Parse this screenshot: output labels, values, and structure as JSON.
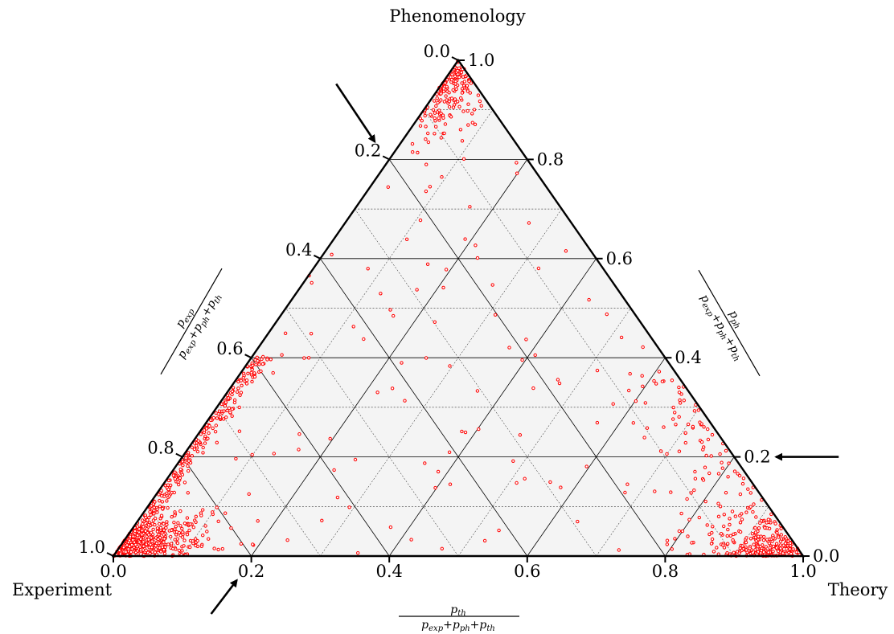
{
  "chart_data": {
    "type": "scatter",
    "subtype": "ternary",
    "corners": {
      "top": "Phenomenology",
      "left": "Experiment",
      "right": "Theory"
    },
    "axes": {
      "bottom": {
        "label_num": "p",
        "label_num_sub": "th",
        "label_den": "p",
        "label_den_parts": [
          "exp",
          "+p",
          "ph",
          "+p",
          "th"
        ],
        "ticks": [
          "0.0",
          "0.2",
          "0.4",
          "0.6",
          "0.8",
          "1.0"
        ]
      },
      "left": {
        "label_num": "p",
        "label_num_sub": "exp",
        "label_den": "p",
        "label_den_parts": [
          "exp",
          "+p",
          "ph",
          "+p",
          "th"
        ],
        "ticks": [
          "1.0",
          "0.8",
          "0.6",
          "0.4",
          "0.2",
          "0.0"
        ]
      },
      "right": {
        "label_num": "p",
        "label_num_sub": "ph",
        "label_den": "p",
        "label_den_parts": [
          "exp",
          "+p",
          "ph",
          "+p",
          "th"
        ],
        "ticks": [
          "0.0",
          "0.2",
          "0.4",
          "0.6",
          "0.8",
          "1.0"
        ]
      }
    },
    "gridlines": 10,
    "grid": true,
    "marker_color": "#ff0000",
    "background_color": "#f4f4f4",
    "clusters": [
      {
        "region": "experiment-corner",
        "center": [
          0.04,
          0.02
        ],
        "spread": [
          0.05,
          0.03
        ],
        "count": 420
      },
      {
        "region": "experiment-phenomenology-edge",
        "center": [
          0.03,
          0.22
        ],
        "spread": [
          0.03,
          0.14
        ],
        "count": 260
      },
      {
        "region": "theory-corner",
        "center": [
          0.92,
          0.03
        ],
        "spread": [
          0.05,
          0.03
        ],
        "count": 230
      },
      {
        "region": "theory-phenomenology-edge",
        "center": [
          0.83,
          0.18
        ],
        "spread": [
          0.05,
          0.12
        ],
        "count": 110
      },
      {
        "region": "phenomenology-corner",
        "center": [
          0.03,
          0.88
        ],
        "spread": [
          0.03,
          0.06
        ],
        "count": 170
      },
      {
        "region": "scattered-interior",
        "center": [
          0.33,
          0.33
        ],
        "spread": [
          0.3,
          0.25
        ],
        "count": 130
      }
    ],
    "arrows": [
      {
        "target_axis": "left",
        "value": 0.2
      },
      {
        "target_axis": "right",
        "value": 0.2
      },
      {
        "target_axis": "bottom",
        "value": 0.2
      }
    ]
  }
}
